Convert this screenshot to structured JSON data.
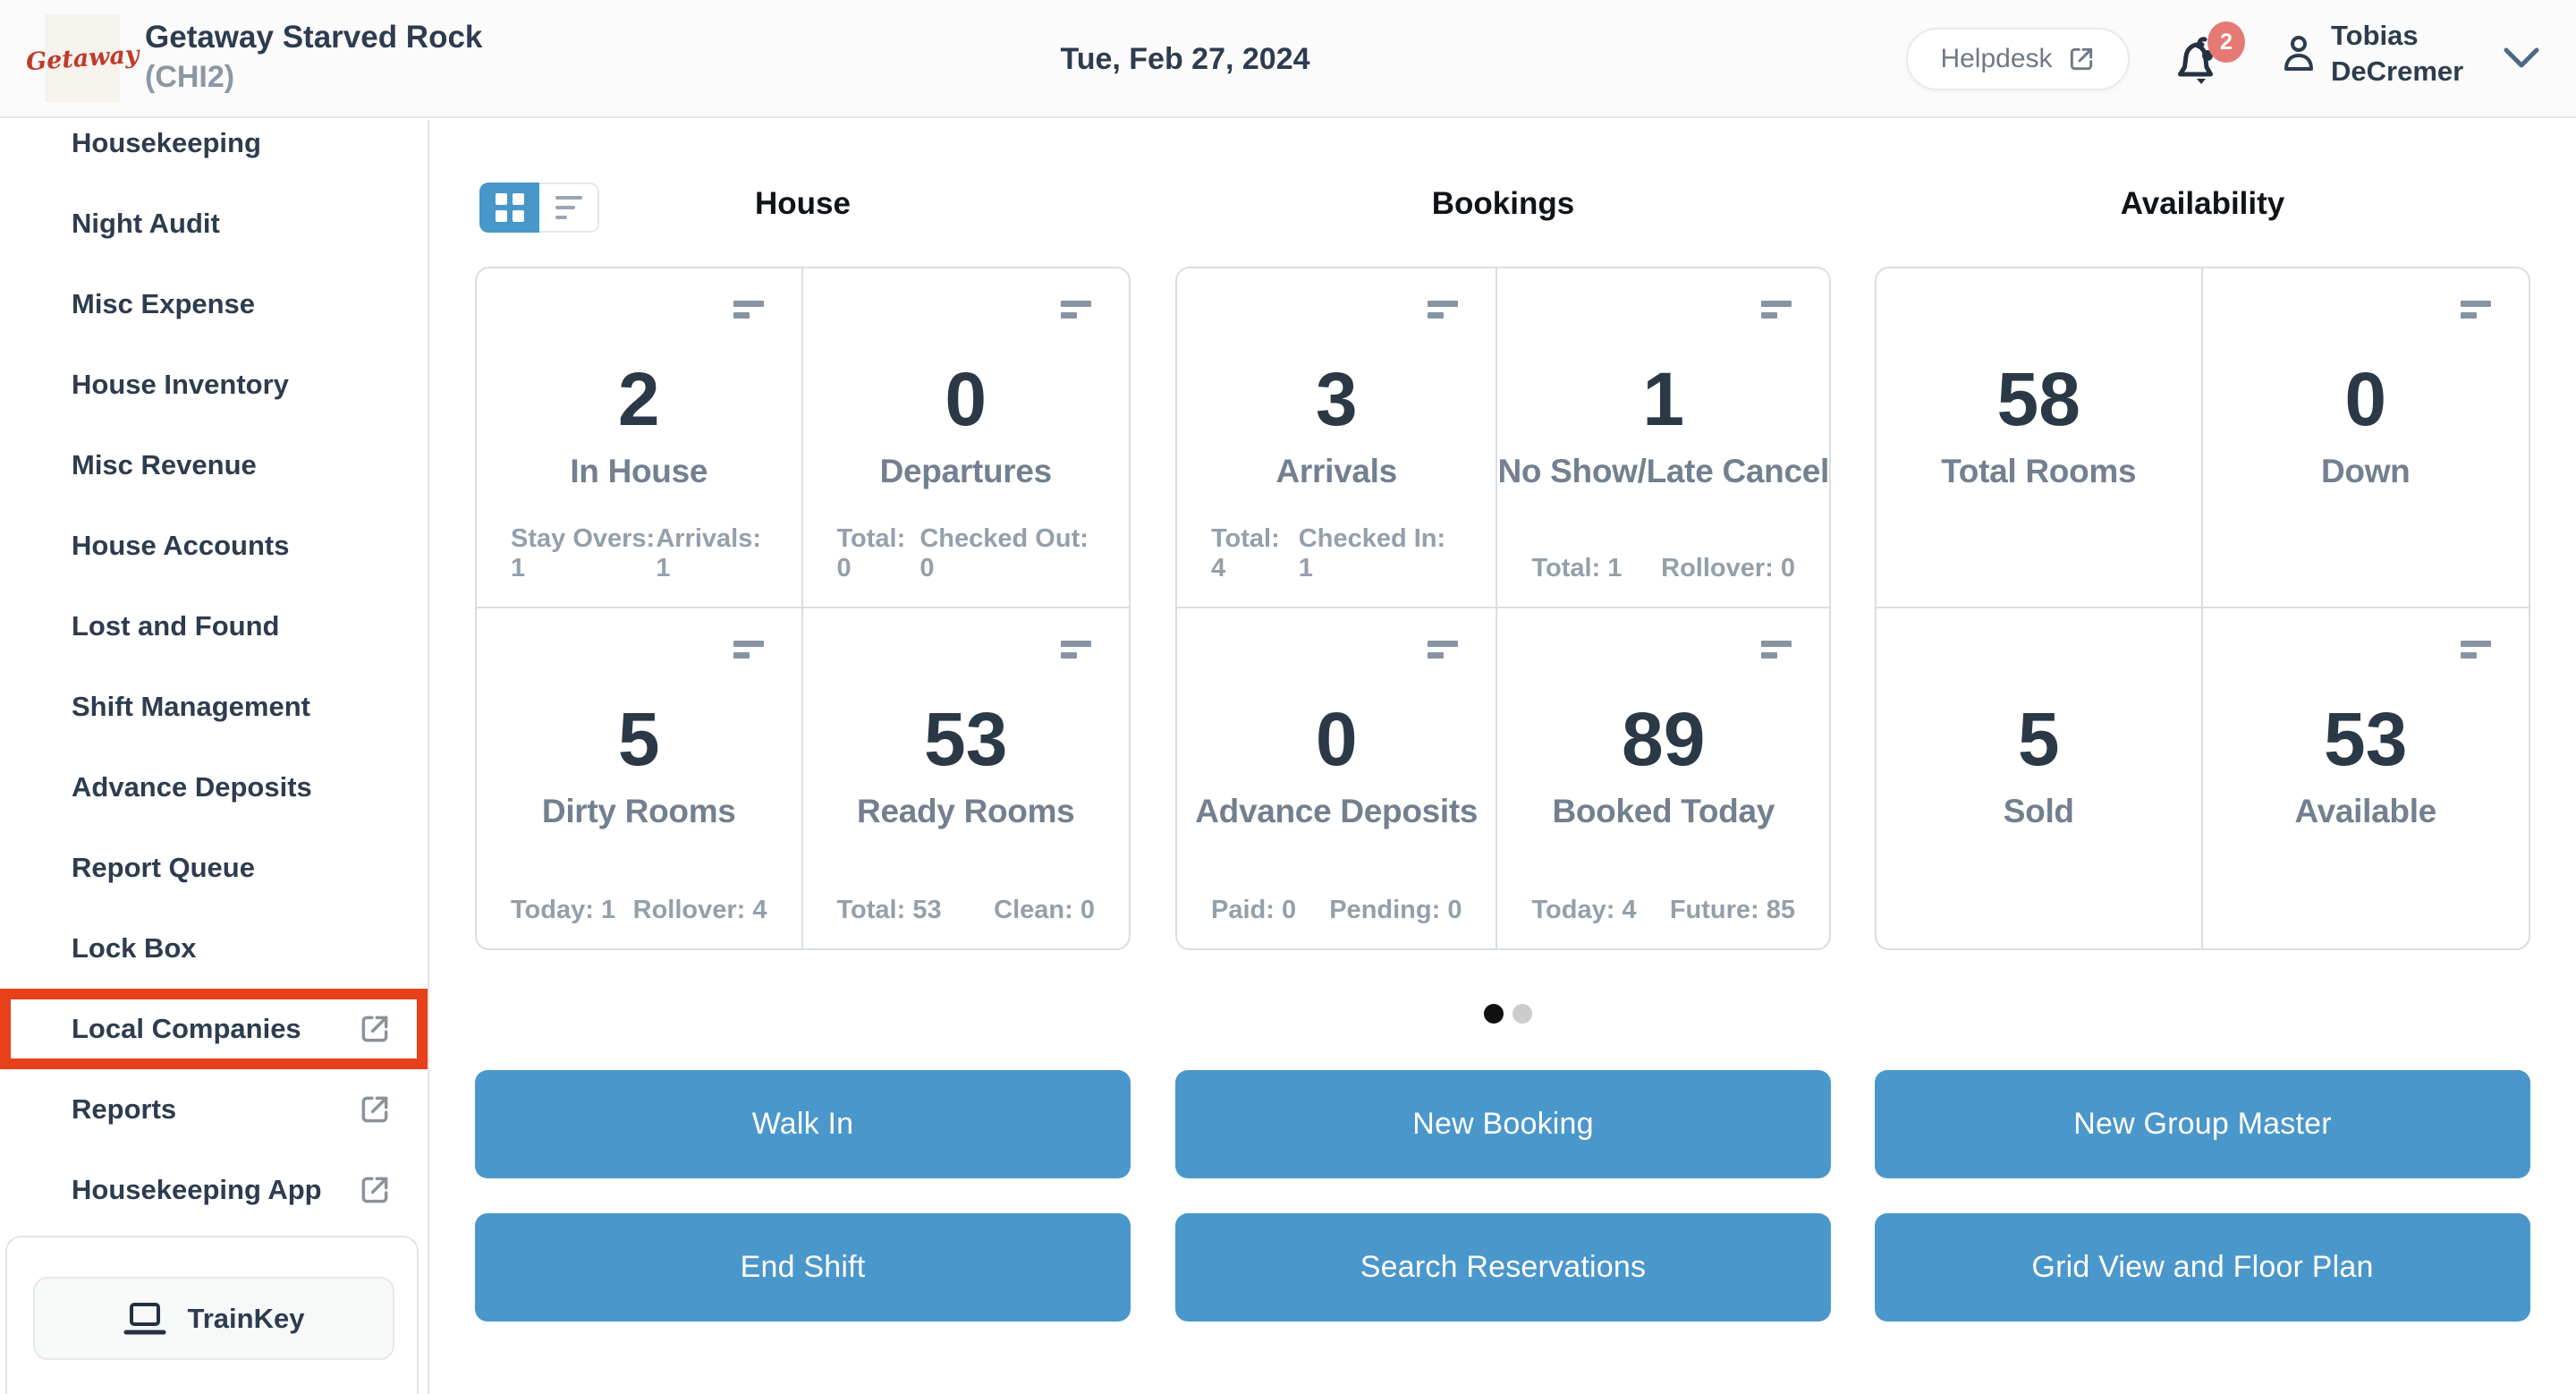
{
  "colors": {
    "text-dark": "#2d3c4e",
    "accent-blue": "#4897ca",
    "button-blue": "#4a97cb",
    "highlight-red": "#e8401a",
    "badge-red": "#e57a74",
    "card-border": "#d9dee3"
  },
  "header": {
    "logo_text": "Getaway",
    "property_name": "Getaway Starved Rock",
    "property_code": "(CHI2)",
    "date": "Tue, Feb 27, 2024",
    "helpdesk_label": "Helpdesk",
    "notification_count": "2",
    "user_name_line1": "Tobias",
    "user_name_line2": "DeCremer"
  },
  "sidebar": {
    "items": [
      {
        "label": "Housekeeping",
        "external": false,
        "highlighted": false
      },
      {
        "label": "Night Audit",
        "external": false,
        "highlighted": false
      },
      {
        "label": "Misc Expense",
        "external": false,
        "highlighted": false
      },
      {
        "label": "House Inventory",
        "external": false,
        "highlighted": false
      },
      {
        "label": "Misc Revenue",
        "external": false,
        "highlighted": false
      },
      {
        "label": "House Accounts",
        "external": false,
        "highlighted": false
      },
      {
        "label": "Lost and Found",
        "external": false,
        "highlighted": false
      },
      {
        "label": "Shift Management",
        "external": false,
        "highlighted": false
      },
      {
        "label": "Advance Deposits",
        "external": false,
        "highlighted": false
      },
      {
        "label": "Report Queue",
        "external": false,
        "highlighted": false
      },
      {
        "label": "Lock Box",
        "external": false,
        "highlighted": false
      },
      {
        "label": "Local Companies",
        "external": true,
        "highlighted": true
      },
      {
        "label": "Reports",
        "external": true,
        "highlighted": false
      },
      {
        "label": "Housekeeping App",
        "external": true,
        "highlighted": false
      }
    ],
    "trainkey_label": "TrainKey"
  },
  "main": {
    "view_toggle": {
      "active": "grid",
      "options": [
        "grid",
        "list"
      ]
    },
    "panels": [
      {
        "title": "House",
        "cards": [
          {
            "value": "2",
            "label": "In House",
            "menu_icon": true,
            "stats": [
              "Stay Overs: 1",
              "Arrivals: 1"
            ]
          },
          {
            "value": "0",
            "label": "Departures",
            "menu_icon": true,
            "stats": [
              "Total: 0",
              "Checked Out: 0"
            ]
          },
          {
            "value": "5",
            "label": "Dirty Rooms",
            "menu_icon": true,
            "stats": [
              "Today: 1",
              "Rollover: 4"
            ]
          },
          {
            "value": "53",
            "label": "Ready Rooms",
            "menu_icon": true,
            "stats": [
              "Total: 53",
              "Clean: 0"
            ]
          }
        ]
      },
      {
        "title": "Bookings",
        "cards": [
          {
            "value": "3",
            "label": "Arrivals",
            "menu_icon": true,
            "stats": [
              "Total: 4",
              "Checked In: 1"
            ]
          },
          {
            "value": "1",
            "label": "No Show/Late Cancel",
            "menu_icon": true,
            "stats": [
              "Total: 1",
              "Rollover: 0"
            ]
          },
          {
            "value": "0",
            "label": "Advance Deposits",
            "menu_icon": true,
            "stats": [
              "Paid: 0",
              "Pending: 0"
            ]
          },
          {
            "value": "89",
            "label": "Booked Today",
            "menu_icon": true,
            "stats": [
              "Today: 4",
              "Future: 85"
            ]
          }
        ]
      },
      {
        "title": "Availability",
        "cards": [
          {
            "value": "58",
            "label": "Total Rooms",
            "menu_icon": false,
            "stats": []
          },
          {
            "value": "0",
            "label": "Down",
            "menu_icon": true,
            "stats": []
          },
          {
            "value": "5",
            "label": "Sold",
            "menu_icon": false,
            "stats": []
          },
          {
            "value": "53",
            "label": "Available",
            "menu_icon": true,
            "stats": []
          }
        ]
      }
    ],
    "pagination": {
      "dot_count": 2,
      "active_index": 0
    },
    "actions": [
      "Walk In",
      "New Booking",
      "New Group Master",
      "End Shift",
      "Search Reservations",
      "Grid View and Floor Plan"
    ]
  },
  "icons": [
    "external-link-icon",
    "bell-icon",
    "person-icon",
    "chevron-down-icon",
    "grid-view-icon",
    "list-view-icon",
    "card-menu-icon",
    "laptop-icon"
  ]
}
